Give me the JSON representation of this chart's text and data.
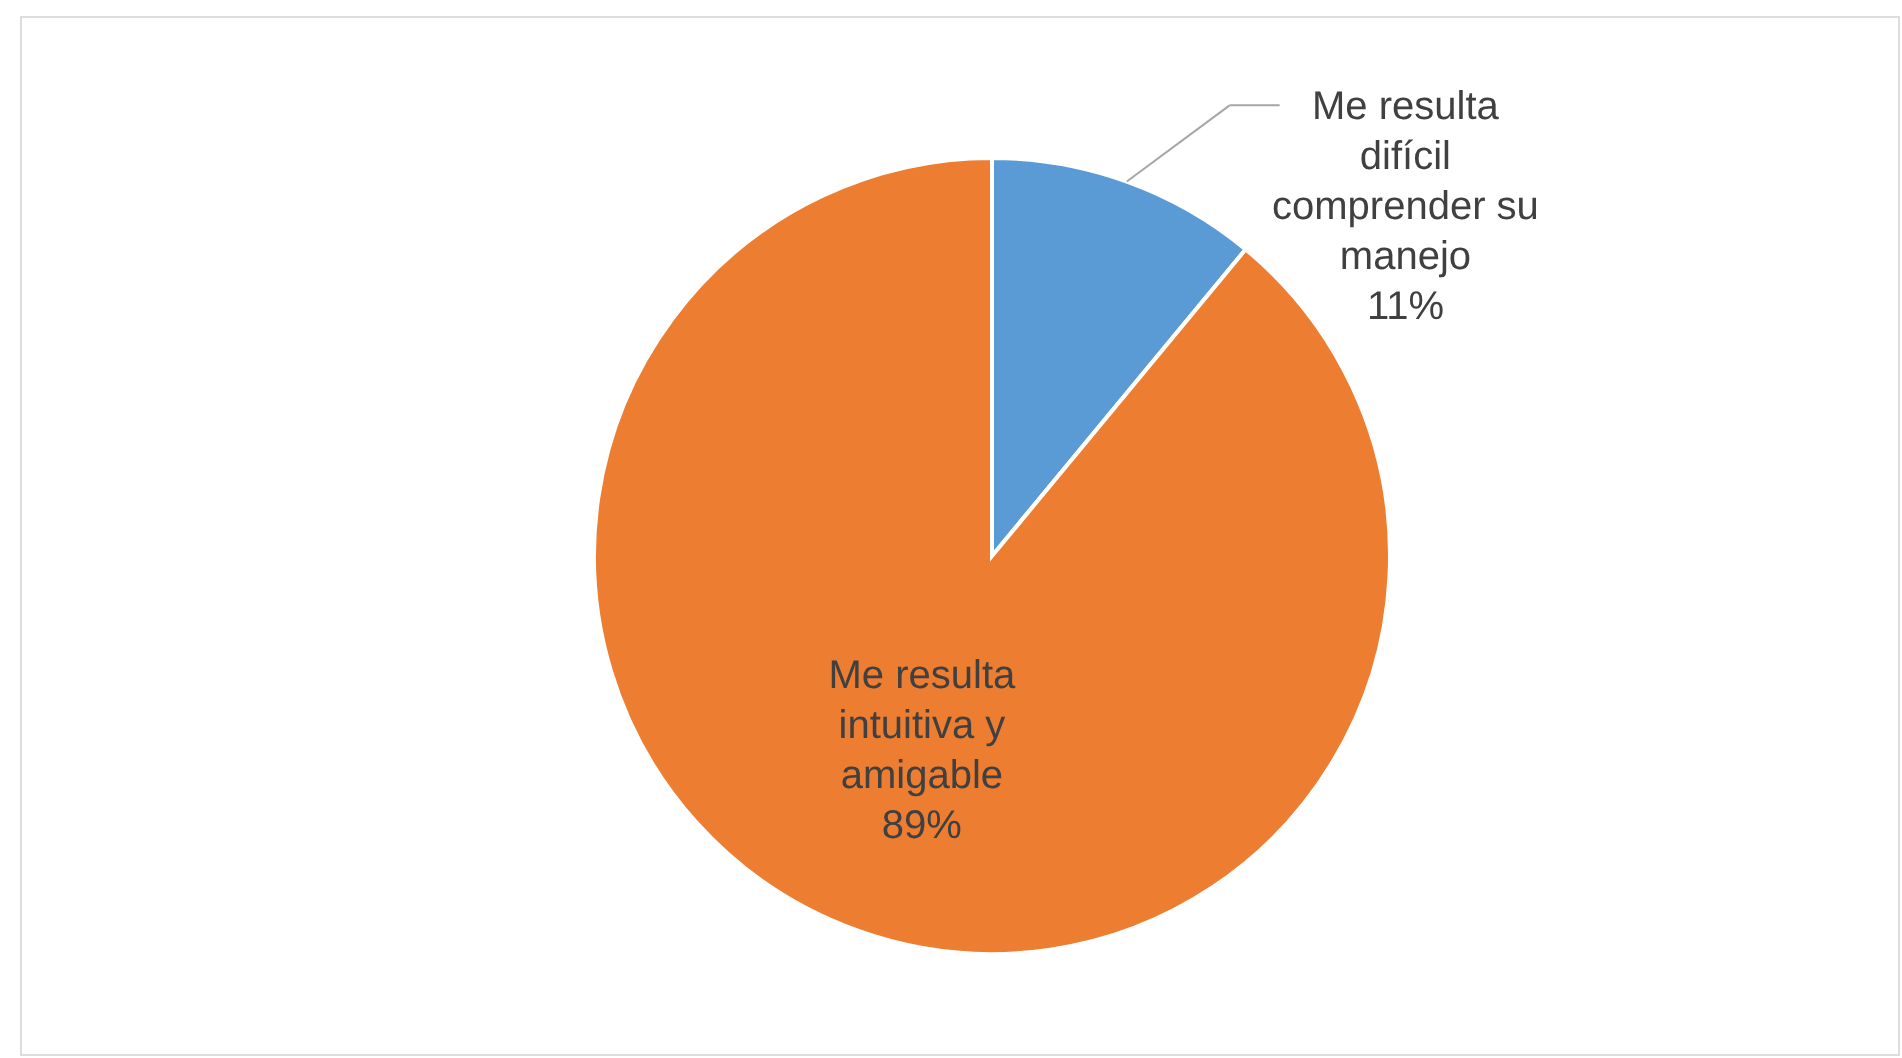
{
  "chart_data": {
    "type": "pie",
    "categories": [
      "Me resulta difícil comprender su manejo",
      "Me resulta intuitiva y amigable"
    ],
    "values": [
      11,
      89
    ],
    "colors": [
      "#5b9bd5",
      "#ed7d31"
    ],
    "value_labels": [
      "11%",
      "89%"
    ]
  }
}
